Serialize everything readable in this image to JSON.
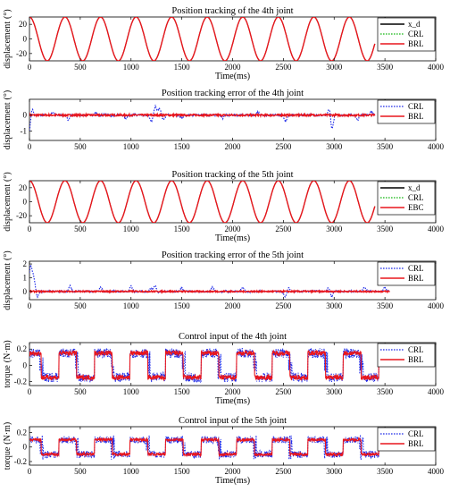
{
  "colors": {
    "black": "#000000",
    "red": "#e8161d",
    "blue": "#1f2be8",
    "green": "#16b814"
  },
  "panels": [
    {
      "title": "Position tracking of the 4th joint",
      "ylabel": "displacement",
      "ylabel_unit": "(°)",
      "xlabel": "Time(ms)",
      "xlim": [
        0,
        4000
      ],
      "ylim": [
        -30,
        30
      ],
      "xticks": [
        "0",
        "500",
        "1000",
        "1500",
        "2000",
        "2500",
        "3000",
        "3500",
        "4000"
      ],
      "yticks": [
        "20",
        "0",
        "-20"
      ],
      "legend": [
        "x_d",
        "CRL",
        "BRL"
      ]
    },
    {
      "title": "Position tracking error of the 4th joint",
      "ylabel": "displacement",
      "ylabel_unit": "(°)",
      "xlabel": "",
      "xlim": [
        0,
        4000
      ],
      "ylim": [
        -1.6,
        1.0
      ],
      "xticks": [
        "0",
        "500",
        "1000",
        "1500",
        "2000",
        "2500",
        "3000",
        "3500",
        "4000"
      ],
      "yticks": [
        "0",
        "-1"
      ],
      "legend": [
        "CRL",
        "BRL"
      ]
    },
    {
      "title": "Position tracking of the 5th joint",
      "ylabel": "displacement",
      "ylabel_unit": "(°)",
      "xlabel": "Time(ms)",
      "xlim": [
        0,
        4000
      ],
      "ylim": [
        -30,
        30
      ],
      "xticks": [
        "0",
        "500",
        "1000",
        "1500",
        "2000",
        "2500",
        "3000",
        "3500",
        "4000"
      ],
      "yticks": [
        "20",
        "0",
        "-20"
      ],
      "legend": [
        "x_d",
        "CRL",
        "EBC"
      ]
    },
    {
      "title": "Position tracking error of the 5th joint",
      "ylabel": "displacement",
      "ylabel_unit": "(°)",
      "xlabel": "",
      "xlim": [
        0,
        4000
      ],
      "ylim": [
        -0.6,
        2.2
      ],
      "xticks": [
        "0",
        "500",
        "1000",
        "1500",
        "2000",
        "2500",
        "3000",
        "3500",
        "4000"
      ],
      "yticks": [
        "2",
        "1",
        "0"
      ],
      "legend": [
        "CRL",
        "BRL"
      ]
    },
    {
      "title": "Control input of the 4th joint",
      "ylabel": "torque",
      "ylabel_unit": "(N·m)",
      "xlabel": "Time(ms)",
      "xlim": [
        0,
        4000
      ],
      "ylim": [
        -0.25,
        0.28
      ],
      "xticks": [
        "0",
        "500",
        "1000",
        "1500",
        "2000",
        "2500",
        "3000",
        "3500",
        "4000"
      ],
      "yticks": [
        "0.2",
        "0",
        "-0.2"
      ],
      "legend": [
        "CRL",
        "BRL"
      ]
    },
    {
      "title": "Control input of the 5th joint",
      "ylabel": "torque",
      "ylabel_unit": "(N·m)",
      "xlabel": "Time(ms)",
      "xlim": [
        0,
        4000
      ],
      "ylim": [
        -0.25,
        0.28
      ],
      "xticks": [
        "0",
        "500",
        "1000",
        "1500",
        "2000",
        "2500",
        "3000",
        "3500",
        "4000"
      ],
      "yticks": [
        "0.2",
        "0",
        "-0.2"
      ],
      "legend": [
        "CRL",
        "BRL"
      ]
    }
  ],
  "chart_data": [
    {
      "type": "line",
      "title": "Position tracking of the 4th joint",
      "xlabel": "Time(ms)",
      "ylabel": "displacement (°)",
      "xlim": [
        0,
        4000
      ],
      "ylim": [
        -30,
        30
      ],
      "signal": {
        "shape": "sine",
        "amplitude": 30,
        "period_ms": 350,
        "x_start": 0,
        "x_end": 3400
      },
      "series": [
        {
          "name": "x_d",
          "color": "#000000",
          "style": "solid"
        },
        {
          "name": "CRL",
          "color": "#16b814",
          "style": "dotted"
        },
        {
          "name": "BRL",
          "color": "#e8161d",
          "style": "solid"
        }
      ],
      "legend": "right"
    },
    {
      "type": "line",
      "title": "Position tracking error of the 4th joint",
      "ylabel": "displacement (°)",
      "xlim": [
        0,
        4000
      ],
      "ylim": [
        -1.6,
        1.0
      ],
      "x_end": 3400,
      "series": [
        {
          "name": "CRL",
          "color": "#1f2be8",
          "style": "dotted",
          "x_end": 3400,
          "spikes": [
            [
              0,
              -1.2
            ],
            [
              20,
              0.6
            ],
            [
              230,
              0.2
            ],
            [
              380,
              -0.3
            ],
            [
              650,
              0.15
            ],
            [
              950,
              -0.2
            ],
            [
              1200,
              -0.4
            ],
            [
              1240,
              0.6
            ],
            [
              1280,
              0.45
            ],
            [
              1320,
              -0.35
            ],
            [
              1500,
              -0.2
            ],
            [
              1900,
              -0.2
            ],
            [
              2250,
              0.2
            ],
            [
              2520,
              -0.45
            ],
            [
              2960,
              0.8
            ],
            [
              2975,
              -1.3
            ],
            [
              3230,
              -0.35
            ],
            [
              3370,
              0.25
            ]
          ]
        },
        {
          "name": "BRL",
          "color": "#e8161d",
          "style": "solid",
          "x_end": 3400,
          "noise": 0.06
        }
      ],
      "legend": "right"
    },
    {
      "type": "line",
      "title": "Position tracking of the 5th joint",
      "xlabel": "Time(ms)",
      "ylabel": "displacement (°)",
      "xlim": [
        0,
        4000
      ],
      "ylim": [
        -30,
        30
      ],
      "signal": {
        "shape": "sine",
        "amplitude": 30,
        "period_ms": 350,
        "x_start": 0,
        "x_end": 3400
      },
      "series": [
        {
          "name": "x_d",
          "color": "#000000",
          "style": "solid"
        },
        {
          "name": "CRL",
          "color": "#16b814",
          "style": "dotted"
        },
        {
          "name": "EBC",
          "color": "#e8161d",
          "style": "solid"
        }
      ],
      "legend": "right"
    },
    {
      "type": "line",
      "title": "Position tracking error of the 5th joint",
      "ylabel": "displacement (°)",
      "xlim": [
        0,
        4000
      ],
      "ylim": [
        -0.6,
        2.2
      ],
      "series": [
        {
          "name": "CRL",
          "color": "#1f2be8",
          "style": "dotted",
          "x_end": 3550,
          "spikes": [
            [
              10,
              2.0
            ],
            [
              40,
              1.2
            ],
            [
              80,
              -0.4
            ],
            [
              400,
              0.4
            ],
            [
              700,
              0.3
            ],
            [
              1000,
              0.4
            ],
            [
              1200,
              0.3
            ],
            [
              1240,
              0.5
            ],
            [
              1260,
              -0.2
            ],
            [
              1500,
              0.3
            ],
            [
              1800,
              0.3
            ],
            [
              2100,
              0.3
            ],
            [
              2520,
              -0.4
            ],
            [
              2550,
              0.3
            ],
            [
              2950,
              0.4
            ],
            [
              2970,
              -0.5
            ],
            [
              3300,
              0.3
            ],
            [
              3500,
              0.3
            ]
          ]
        },
        {
          "name": "BRL",
          "color": "#e8161d",
          "style": "solid",
          "x_end": 3550,
          "noise": 0.05
        }
      ],
      "legend": "right"
    },
    {
      "type": "line",
      "title": "Control input of the 4th joint",
      "xlabel": "Time(ms)",
      "ylabel": "torque (N·m)",
      "xlim": [
        0,
        4000
      ],
      "ylim": [
        -0.25,
        0.28
      ],
      "signal": {
        "shape": "square",
        "amplitude": 0.15,
        "period_ms": 350,
        "x_end": 3550
      },
      "series": [
        {
          "name": "CRL",
          "color": "#1f2be8",
          "style": "dotted",
          "noise": 0.06,
          "x_end": 3550
        },
        {
          "name": "BRL",
          "color": "#e8161d",
          "style": "solid",
          "noise": 0.03,
          "x_end": 3550
        }
      ],
      "legend": "right"
    },
    {
      "type": "line",
      "title": "Control input of the 5th joint",
      "xlabel": "Time(ms)",
      "ylabel": "torque (N·m)",
      "xlim": [
        0,
        4000
      ],
      "ylim": [
        -0.25,
        0.28
      ],
      "signal": {
        "shape": "square",
        "amplitude": 0.1,
        "period_ms": 350,
        "x_end": 3550
      },
      "series": [
        {
          "name": "CRL",
          "color": "#1f2be8",
          "style": "dotted",
          "noise": 0.05,
          "x_end": 3550
        },
        {
          "name": "BRL",
          "color": "#e8161d",
          "style": "solid",
          "noise": 0.02,
          "x_end": 3550
        }
      ],
      "legend": "right"
    }
  ]
}
